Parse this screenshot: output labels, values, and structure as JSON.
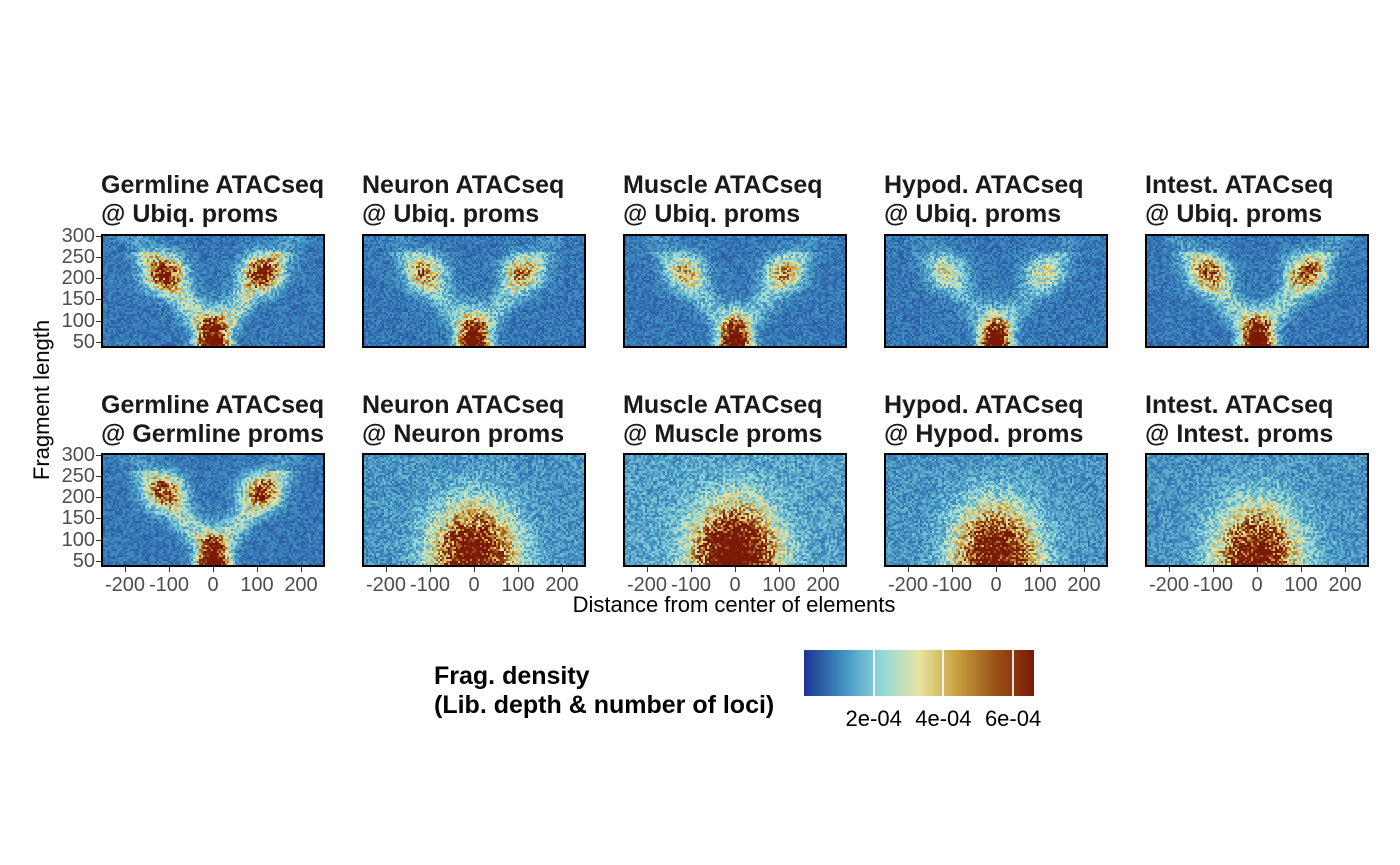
{
  "chart_data": {
    "type": "heatmap",
    "layout": "facet grid, 2 rows x 5 columns",
    "xlabel": "Distance from center of elements",
    "ylabel": "Fragment length",
    "x_range": [
      -250,
      250
    ],
    "y_range": [
      40,
      300
    ],
    "x_ticks": [
      -200,
      -100,
      0,
      100,
      200
    ],
    "y_ticks": [
      50,
      100,
      150,
      200,
      250,
      300
    ],
    "colorscale": {
      "title_lines": [
        "Frag. density",
        "(Lib. depth & number of loci)"
      ],
      "ticks": [
        0.0002,
        0.0004,
        0.0006
      ],
      "tick_labels": [
        "2e-04",
        "4e-04",
        "6e-04"
      ],
      "range": [
        0,
        0.00066
      ],
      "colors": [
        "#1c3590",
        "#3f8fc0",
        "#8fd8dc",
        "#e8e4a0",
        "#c8a040",
        "#9a5218",
        "#7a1a06"
      ]
    },
    "panels": [
      {
        "title_lines": [
          "Germline ATACseq",
          "@ Ubiq. proms"
        ],
        "row": 0,
        "col": 0,
        "nucleosome_peak": 0.0007,
        "flank_peaks": 0.0005,
        "center_peak": 0.0006,
        "background": 8e-05
      },
      {
        "title_lines": [
          "Neuron ATACseq",
          "@ Ubiq. proms"
        ],
        "row": 0,
        "col": 1,
        "nucleosome_peak": 0.0007,
        "flank_peaks": 0.00032,
        "center_peak": 0.0006,
        "background": 8e-05
      },
      {
        "title_lines": [
          "Muscle ATACseq",
          "@ Ubiq. proms"
        ],
        "row": 0,
        "col": 2,
        "nucleosome_peak": 0.0007,
        "flank_peaks": 0.00028,
        "center_peak": 0.0006,
        "background": 8e-05
      },
      {
        "title_lines": [
          "Hypod. ATACseq",
          "@ Ubiq. proms"
        ],
        "row": 0,
        "col": 3,
        "nucleosome_peak": 0.0007,
        "flank_peaks": 0.0002,
        "center_peak": 0.0006,
        "background": 8e-05
      },
      {
        "title_lines": [
          "Intest. ATACseq",
          "@ Ubiq. proms"
        ],
        "row": 0,
        "col": 4,
        "nucleosome_peak": 0.0007,
        "flank_peaks": 0.0004,
        "center_peak": 0.0006,
        "background": 8e-05
      },
      {
        "title_lines": [
          "Germline ATACseq",
          "@ Germline proms"
        ],
        "row": 1,
        "col": 0,
        "nucleosome_peak": 0.00065,
        "flank_peaks": 0.00042,
        "center_peak": 0.0006,
        "background": 8e-05
      },
      {
        "title_lines": [
          "Neuron ATACseq",
          "@ Neuron proms"
        ],
        "row": 1,
        "col": 1,
        "nucleosome_peak": 0.0,
        "flank_peaks": 0.0,
        "center_peak": 0.00075,
        "background": 0.00012
      },
      {
        "title_lines": [
          "Muscle ATACseq",
          "@ Muscle proms"
        ],
        "row": 1,
        "col": 2,
        "nucleosome_peak": 0.0,
        "flank_peaks": 0.0,
        "center_peak": 0.0009,
        "background": 0.00014
      },
      {
        "title_lines": [
          "Hypod. ATACseq",
          "@ Hypod. proms"
        ],
        "row": 1,
        "col": 3,
        "nucleosome_peak": 0.0,
        "flank_peaks": 0.0,
        "center_peak": 0.00075,
        "background": 0.00012
      },
      {
        "title_lines": [
          "Intest. ATACseq",
          "@ Intest. proms"
        ],
        "row": 1,
        "col": 4,
        "nucleosome_peak": 0.0,
        "flank_peaks": 0.0,
        "center_peak": 0.00068,
        "background": 0.00012
      }
    ]
  }
}
